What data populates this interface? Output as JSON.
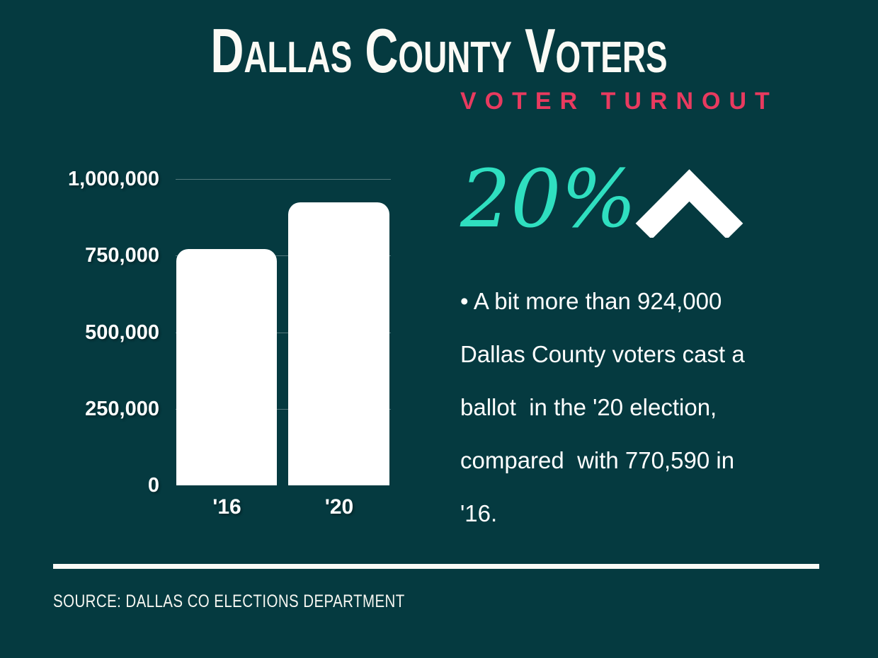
{
  "page": {
    "bg_color": "#053a40",
    "title": "Dallas County Voters",
    "subtitle": "VOTER TURNOUT",
    "subtitle_color": "#e83a5f"
  },
  "stat": {
    "value": "20%",
    "value_color": "#2fdfc0",
    "direction_icon": "chevron-up-icon",
    "direction_color": "#ffffff"
  },
  "note": {
    "text": "• A bit more than 924,000\nDallas County voters cast a\nballot  in the '20 election,\ncompared  with 770,590 in\n'16."
  },
  "footer": {
    "source": "SOURCE: DALLAS CO ELECTIONS DEPARTMENT"
  },
  "chart_data": {
    "type": "bar",
    "categories": [
      "'16",
      "'20"
    ],
    "values": [
      770590,
      924000
    ],
    "title": "",
    "xlabel": "",
    "ylabel": "",
    "ylim": [
      0,
      1000000
    ],
    "yticks": [
      0,
      250000,
      500000,
      750000,
      1000000
    ],
    "ytick_labels": [
      "0",
      "250,000",
      "500,000",
      "750,000",
      "1,000,000"
    ],
    "bar_color": "#ffffff",
    "grid": true,
    "legend": false
  }
}
